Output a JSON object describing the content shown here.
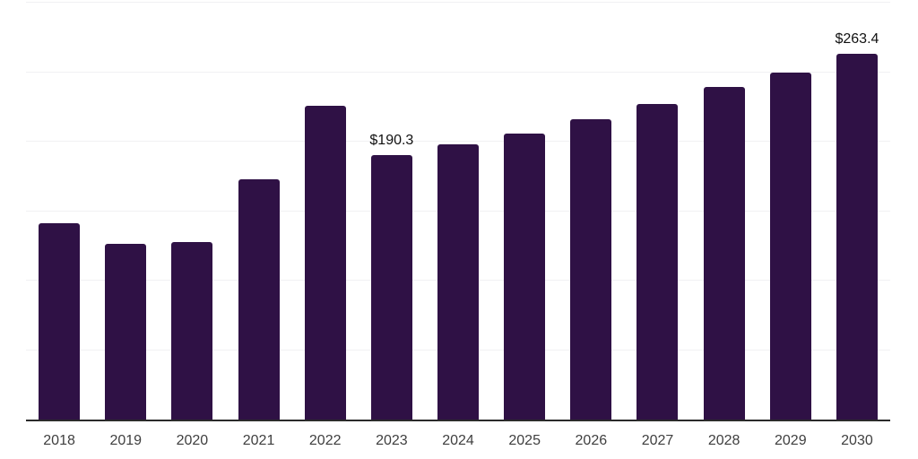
{
  "chart_data": {
    "type": "bar",
    "title": "",
    "xlabel": "",
    "ylabel": "",
    "categories": [
      "2018",
      "2019",
      "2020",
      "2021",
      "2022",
      "2023",
      "2024",
      "2025",
      "2026",
      "2027",
      "2028",
      "2029",
      "2030"
    ],
    "values": [
      141.4,
      126.6,
      127.9,
      172.9,
      225.6,
      190.3,
      198.0,
      205.7,
      216.0,
      226.9,
      239.1,
      250.0,
      263.4
    ],
    "data_labels": [
      "",
      "",
      "",
      "",
      "",
      "$190.3",
      "",
      "",
      "",
      "",
      "",
      "",
      "$263.4"
    ],
    "ylim": [
      0,
      300
    ],
    "gridline_step": 50,
    "grid": true,
    "legend": false,
    "y_axis_tick_labels_visible": false,
    "colors": {
      "bar": "#2F1145",
      "gridline": "#F1F1F3",
      "axis_line": "#2B2B2B",
      "value_label": "#111111",
      "tick_label": "#3F3F3F"
    }
  }
}
